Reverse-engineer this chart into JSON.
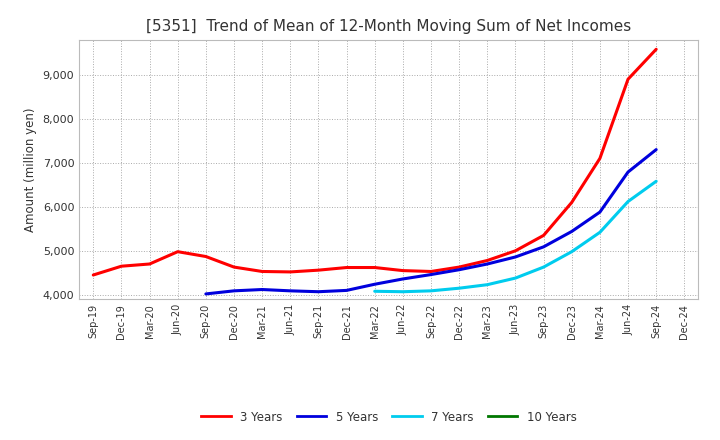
{
  "title": "[5351]  Trend of Mean of 12-Month Moving Sum of Net Incomes",
  "ylabel": "Amount (million yen)",
  "ylim": [
    3900,
    9800
  ],
  "yticks": [
    4000,
    5000,
    6000,
    7000,
    8000,
    9000
  ],
  "colors": {
    "3 Years": "#ff0000",
    "5 Years": "#0000dd",
    "7 Years": "#00ccee",
    "10 Years": "#007700"
  },
  "x_labels": [
    "Sep-19",
    "Dec-19",
    "Mar-20",
    "Jun-20",
    "Sep-20",
    "Dec-20",
    "Mar-21",
    "Jun-21",
    "Sep-21",
    "Dec-21",
    "Mar-22",
    "Jun-22",
    "Sep-22",
    "Dec-22",
    "Mar-23",
    "Jun-23",
    "Sep-23",
    "Dec-23",
    "Mar-24",
    "Jun-24",
    "Sep-24",
    "Dec-24"
  ],
  "series_3y": [
    4450,
    4650,
    4700,
    4980,
    4870,
    4630,
    4530,
    4520,
    4560,
    4620,
    4620,
    4550,
    4530,
    4630,
    4780,
    5000,
    5350,
    6100,
    7100,
    8900,
    9580,
    null
  ],
  "series_5y": [
    null,
    null,
    null,
    null,
    4020,
    4090,
    4120,
    4090,
    4070,
    4100,
    4240,
    4360,
    4460,
    4570,
    4700,
    4860,
    5090,
    5440,
    5880,
    6790,
    7300,
    null
  ],
  "series_7y": [
    null,
    null,
    null,
    null,
    null,
    null,
    null,
    null,
    null,
    null,
    4080,
    4070,
    4090,
    4150,
    4230,
    4380,
    4630,
    4980,
    5420,
    6120,
    6580,
    null
  ],
  "series_10y": [
    null,
    null,
    null,
    null,
    null,
    null,
    null,
    null,
    null,
    null,
    null,
    null,
    null,
    null,
    null,
    null,
    null,
    null,
    null,
    null,
    null,
    null
  ],
  "title_color": "#333333",
  "title_fontsize": 11,
  "linewidth": 2.2
}
